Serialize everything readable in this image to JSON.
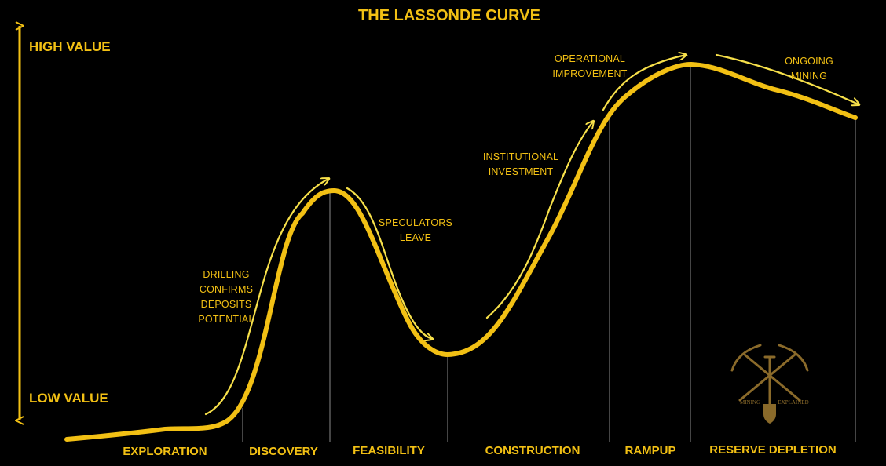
{
  "title": "THE LASSONDE CURVE",
  "colors": {
    "background": "#000000",
    "accent": "#f2c014",
    "accent_light": "#f7e04a",
    "divider": "#8a8a8a",
    "logo": "#8a6a2a"
  },
  "axis": {
    "high_label": "HIGH VALUE",
    "low_label": "LOW VALUE"
  },
  "phases": [
    {
      "label": "EXPLORATION"
    },
    {
      "label": "DISCOVERY"
    },
    {
      "label": "FEASIBILITY"
    },
    {
      "label": "CONSTRUCTION"
    },
    {
      "label": "RAMPUP"
    },
    {
      "label": "RESERVE DEPLETION"
    }
  ],
  "annotations": {
    "drilling": [
      "DRILLING",
      "CONFIRMS",
      "DEPOSITS",
      "POTENTIAL"
    ],
    "speculators": [
      "SPECULATORS",
      "LEAVE"
    ],
    "institutional": [
      "INSTITUTIONAL",
      "INVESTMENT"
    ],
    "operational": [
      "OPERATIONAL",
      "IMPROVEMENT"
    ],
    "ongoing": [
      "ONGOING",
      "MINING"
    ]
  },
  "logo": {
    "icon": "crossed-pickaxes-shovel-icon",
    "left_text": "MINING",
    "right_text": "EXPLAINED"
  }
}
